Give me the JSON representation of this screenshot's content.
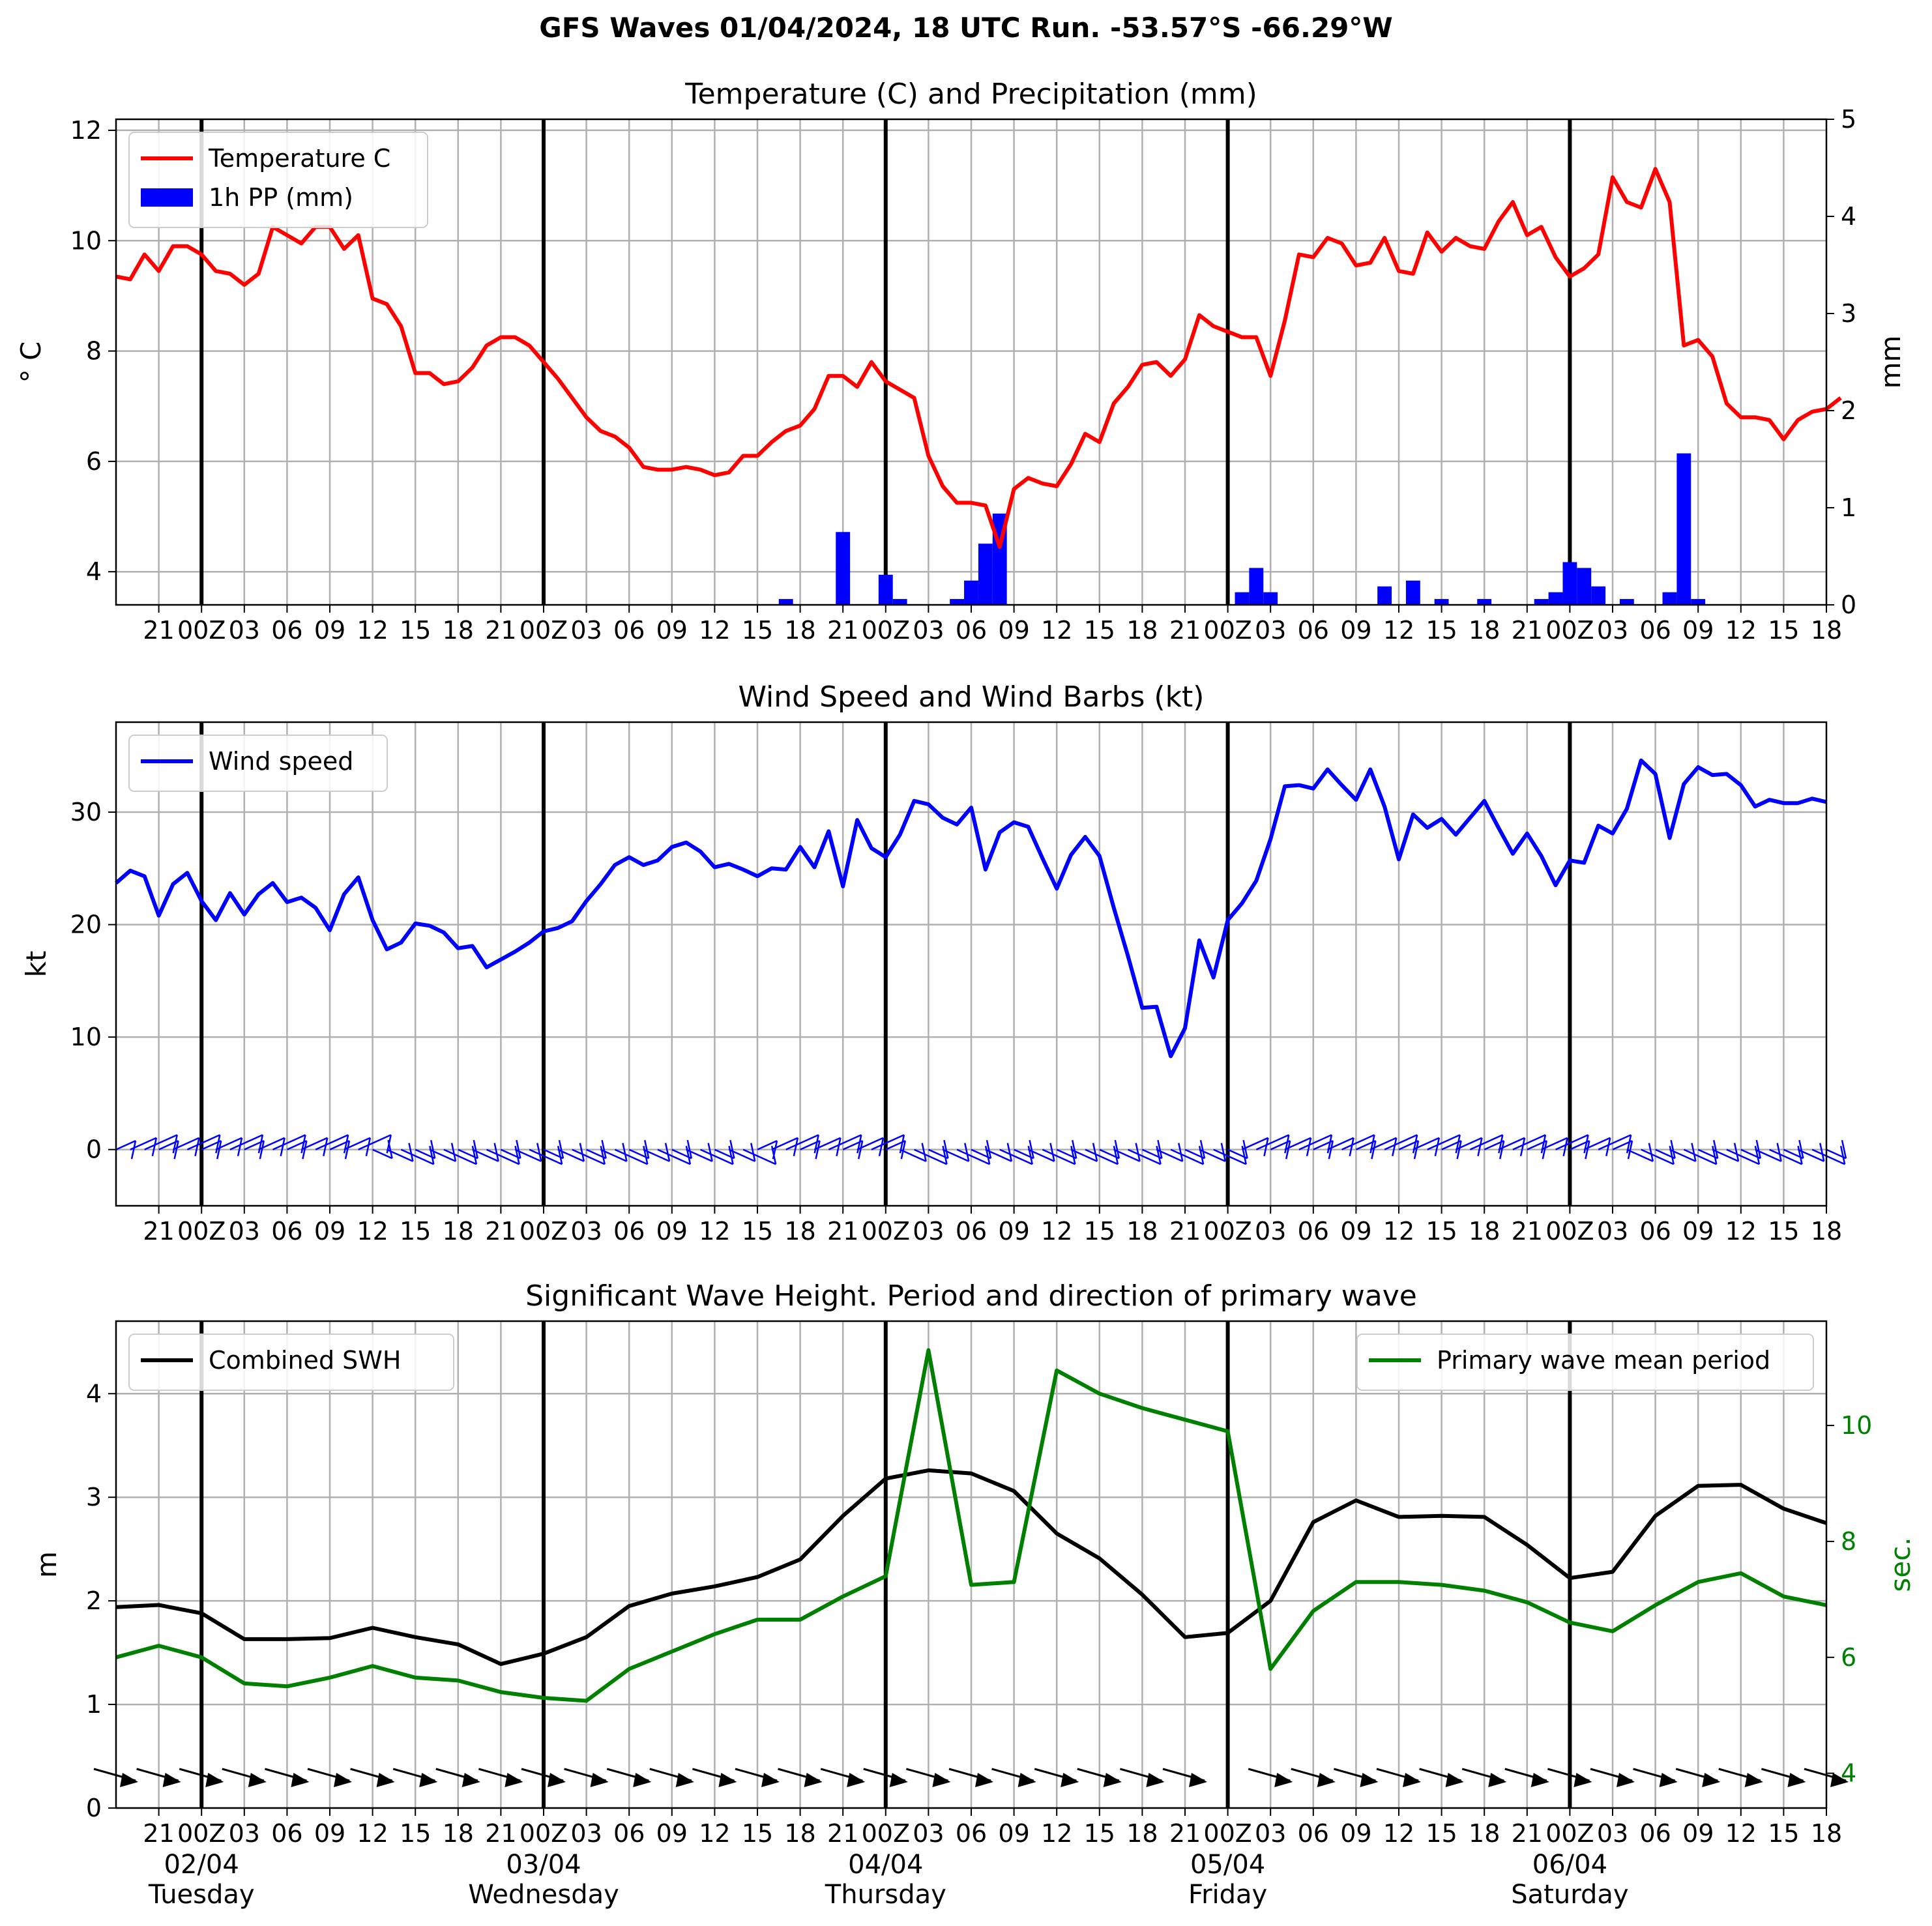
{
  "title": "GFS Waves 01/04/2024, 18 UTC Run. -53.57°S -66.29°W",
  "x_axis": {
    "tick_labels_upper": [
      "21",
      "00Z",
      "03",
      "06",
      "09",
      "12",
      "15",
      "18",
      "21",
      "00Z",
      "03",
      "06",
      "09",
      "12",
      "15",
      "18",
      "21",
      "00Z",
      "03",
      "06",
      "09",
      "12",
      "15",
      "18",
      "21",
      "00Z",
      "03",
      "06",
      "09",
      "12",
      "15",
      "18",
      "21",
      "00Z",
      "03",
      "06",
      "09",
      "12",
      "15",
      "18"
    ],
    "date_labels": [
      "02/04",
      "03/04",
      "04/04",
      "05/04",
      "06/04"
    ],
    "day_labels": [
      "Tuesday",
      "Wednesday",
      "Thursday",
      "Friday",
      "Saturday"
    ],
    "start": "2024-04-01 18:00 UTC",
    "end": "2024-04-06 18:00 UTC",
    "major_lines_at": [
      "02/04 00Z",
      "03/04 00Z",
      "04/04 00Z",
      "05/04 00Z",
      "06/04 00Z"
    ]
  },
  "chart_data": [
    {
      "type": "line",
      "title": "Temperature (C) and Precipitation (mm)",
      "ylabel": "° C",
      "ylim": [
        3.4,
        12.2
      ],
      "yticks": [
        4,
        6,
        8,
        10,
        12
      ],
      "y2label": "mm",
      "y2lim": [
        0,
        5
      ],
      "y2ticks": [
        0,
        1,
        2,
        3,
        4,
        5
      ],
      "legend": [
        "Temperature C",
        "1h PP (mm)"
      ],
      "legend_position": "upper-left",
      "temperature_step_hours": 1,
      "temperature": [
        9.35,
        9.3,
        9.75,
        9.45,
        9.9,
        9.9,
        9.75,
        9.45,
        9.4,
        9.2,
        9.4,
        10.25,
        10.1,
        9.95,
        10.25,
        10.25,
        9.85,
        10.1,
        8.95,
        8.85,
        8.45,
        7.6,
        7.6,
        7.4,
        7.45,
        7.7,
        8.1,
        8.25,
        8.25,
        8.1,
        7.8,
        7.5,
        7.15,
        6.8,
        6.55,
        6.45,
        6.25,
        5.9,
        5.85,
        5.85,
        5.9,
        5.85,
        5.75,
        5.8,
        6.1,
        6.1,
        6.35,
        6.55,
        6.65,
        6.95,
        7.55,
        7.55,
        7.35,
        7.8,
        7.45,
        7.3,
        7.15,
        6.1,
        5.55,
        5.25,
        5.25,
        5.2,
        4.45,
        5.5,
        5.7,
        5.6,
        5.55,
        5.95,
        6.5,
        6.35,
        7.05,
        7.35,
        7.75,
        7.8,
        7.55,
        7.85,
        8.65,
        8.45,
        8.35,
        8.25,
        8.25,
        7.55,
        8.55,
        9.75,
        9.7,
        10.05,
        9.95,
        9.55,
        9.6,
        10.05,
        9.45,
        9.4,
        10.15,
        9.8,
        10.05,
        9.9,
        9.85,
        10.35,
        10.7,
        10.1,
        10.25,
        9.7,
        9.35,
        9.5,
        9.75,
        11.15,
        10.7,
        10.6,
        11.3,
        10.7,
        8.1,
        8.2,
        7.9,
        7.05,
        6.8,
        6.8,
        6.75,
        6.4,
        6.75,
        6.9,
        6.95,
        7.15
      ],
      "precipitation_mm": [
        {
          "hour": 47,
          "value": 0.06
        },
        {
          "hour": 51,
          "value": 0.75
        },
        {
          "hour": 54,
          "value": 0.31
        },
        {
          "hour": 55,
          "value": 0.06
        },
        {
          "hour": 59,
          "value": 0.06
        },
        {
          "hour": 60,
          "value": 0.25
        },
        {
          "hour": 61,
          "value": 0.63
        },
        {
          "hour": 62,
          "value": 0.94
        },
        {
          "hour": 79,
          "value": 0.13
        },
        {
          "hour": 80,
          "value": 0.38
        },
        {
          "hour": 81,
          "value": 0.13
        },
        {
          "hour": 89,
          "value": 0.19
        },
        {
          "hour": 91,
          "value": 0.25
        },
        {
          "hour": 93,
          "value": 0.06
        },
        {
          "hour": 96,
          "value": 0.06
        },
        {
          "hour": 100,
          "value": 0.06
        },
        {
          "hour": 101,
          "value": 0.13
        },
        {
          "hour": 102,
          "value": 0.44
        },
        {
          "hour": 103,
          "value": 0.38
        },
        {
          "hour": 104,
          "value": 0.19
        },
        {
          "hour": 106,
          "value": 0.06
        },
        {
          "hour": 109,
          "value": 0.13
        },
        {
          "hour": 110,
          "value": 1.56
        },
        {
          "hour": 111,
          "value": 0.06
        }
      ]
    },
    {
      "type": "line",
      "title": "Wind Speed and Wind Barbs (kt)",
      "ylabel": "kt",
      "ylim": [
        -5,
        38
      ],
      "yticks": [
        0,
        10,
        20,
        30
      ],
      "legend": [
        "Wind speed"
      ],
      "legend_position": "upper-left",
      "wind_step_hours": 1,
      "wind_speed": [
        23.7,
        24.8,
        24.3,
        20.8,
        23.6,
        24.6,
        22.1,
        20.4,
        22.8,
        20.9,
        22.7,
        23.7,
        22.0,
        22.4,
        21.5,
        19.5,
        22.7,
        24.2,
        20.4,
        17.8,
        18.4,
        20.1,
        19.9,
        19.3,
        17.9,
        18.1,
        16.2,
        16.9,
        17.6,
        18.4,
        19.4,
        19.7,
        20.3,
        22.1,
        23.6,
        25.3,
        26.0,
        25.3,
        25.7,
        26.9,
        27.3,
        26.5,
        25.1,
        25.4,
        24.9,
        24.3,
        25.0,
        24.9,
        26.9,
        25.1,
        28.3,
        23.4,
        29.3,
        26.8,
        26.0,
        28.0,
        31.0,
        30.7,
        29.5,
        28.9,
        30.4,
        24.9,
        28.2,
        29.1,
        28.7,
        25.9,
        23.2,
        26.2,
        27.8,
        26.1,
        21.5,
        17.2,
        12.6,
        12.7,
        8.3,
        10.8,
        18.6,
        15.3,
        20.4,
        21.9,
        23.9,
        27.6,
        32.3,
        32.4,
        32.1,
        33.8,
        32.4,
        31.1,
        33.8,
        30.5,
        25.8,
        29.8,
        28.6,
        29.4,
        28.0,
        29.5,
        31.0,
        28.6,
        26.3,
        28.1,
        26.1,
        23.5,
        25.7,
        25.5,
        28.8,
        28.1,
        30.3,
        34.6,
        33.4,
        27.7,
        32.5,
        34.0,
        33.3,
        33.4,
        32.4,
        30.5,
        31.1,
        30.8,
        30.8,
        31.2,
        30.9
      ]
    },
    {
      "type": "line",
      "title": "Significant Wave Height. Period and direction of primary wave",
      "ylabel": "m",
      "ylim": [
        0,
        4.7
      ],
      "yticks": [
        0,
        1,
        2,
        3,
        4
      ],
      "y2label": "sec.",
      "y2lim": [
        3.4,
        11.8
      ],
      "y2ticks": [
        4,
        6,
        8,
        10
      ],
      "step_hours": 3,
      "series": [
        {
          "name": "Combined SWH",
          "color": "#000000",
          "values": [
            1.94,
            1.96,
            1.88,
            1.63,
            1.63,
            1.64,
            1.74,
            1.65,
            1.58,
            1.39,
            1.49,
            1.65,
            1.95,
            2.07,
            2.14,
            2.23,
            2.4,
            2.82,
            3.18,
            3.26,
            3.23,
            3.06,
            2.65,
            2.41,
            2.06,
            1.65,
            1.69,
            2.0,
            2.76,
            2.97,
            2.81,
            2.82,
            2.81,
            2.54,
            2.22,
            2.28,
            2.82,
            3.11,
            3.12,
            2.89,
            2.75
          ]
        },
        {
          "name": "Primary wave mean period",
          "color": "#008000",
          "values": [
            6.0,
            6.2,
            6.0,
            5.55,
            5.5,
            5.65,
            5.85,
            5.65,
            5.6,
            5.4,
            5.3,
            5.25,
            5.8,
            6.1,
            6.4,
            6.65,
            6.65,
            7.05,
            7.4,
            11.3,
            7.25,
            7.3,
            10.95,
            10.55,
            10.3,
            10.1,
            9.9,
            5.8,
            6.8,
            7.3,
            7.3,
            7.25,
            7.15,
            6.95,
            6.6,
            6.45,
            6.9,
            7.3,
            7.45,
            7.05,
            6.9
          ]
        }
      ],
      "legend": [
        "Combined SWH",
        "Primary wave mean period"
      ],
      "legend_positions": [
        "upper-left",
        "upper-right"
      ],
      "direction_arrows_present": true
    }
  ],
  "colors": {
    "temperature": "#ff0000",
    "precipitation": "#0000ff",
    "wind": "#0000ff",
    "swh": "#000000",
    "period": "#008000",
    "grid": "#b0b0b0",
    "major_line": "#000000"
  }
}
